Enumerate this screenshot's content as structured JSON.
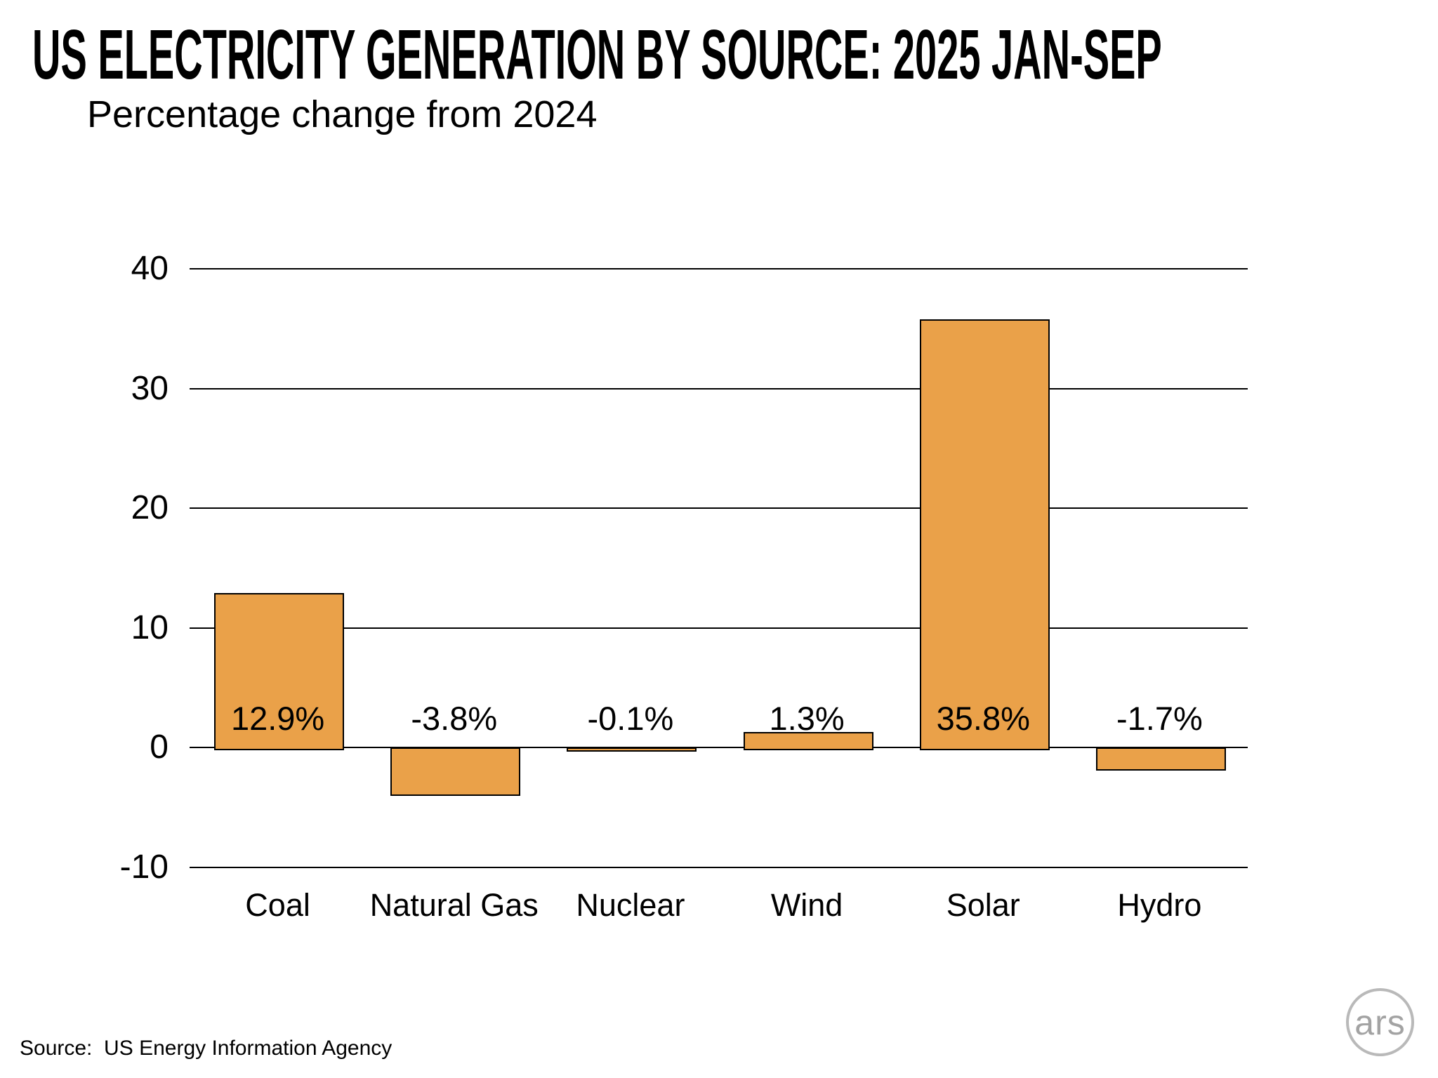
{
  "header": {
    "title": "US ELECTRICITY GENERATION BY SOURCE: 2025 JAN-SEP",
    "subtitle": "Percentage change from 2024"
  },
  "chart_data": {
    "type": "bar",
    "title": "US ELECTRICITY GENERATION BY SOURCE: 2025 JAN-SEP",
    "subtitle": "Percentage change from 2024",
    "categories": [
      "Coal",
      "Natural Gas",
      "Nuclear",
      "Wind",
      "Solar",
      "Hydro"
    ],
    "values": [
      12.9,
      -3.8,
      -0.1,
      1.3,
      35.8,
      -1.7
    ],
    "value_labels": [
      "12.9%",
      "-3.8%",
      "-0.1%",
      "1.3%",
      "35.8%",
      "-1.7%"
    ],
    "xlabel": "",
    "ylabel": "",
    "ylim": [
      -10,
      40
    ],
    "yticks": [
      40,
      30,
      20,
      10,
      0,
      -10
    ],
    "grid": "horizontal",
    "legend_position": "none",
    "bar_color": "#EAA149",
    "bar_border_color": "#000000",
    "gridline_color": "#000000"
  },
  "footer": {
    "source": "Source:  US Energy Information Agency"
  },
  "logo": {
    "text": "ars"
  }
}
